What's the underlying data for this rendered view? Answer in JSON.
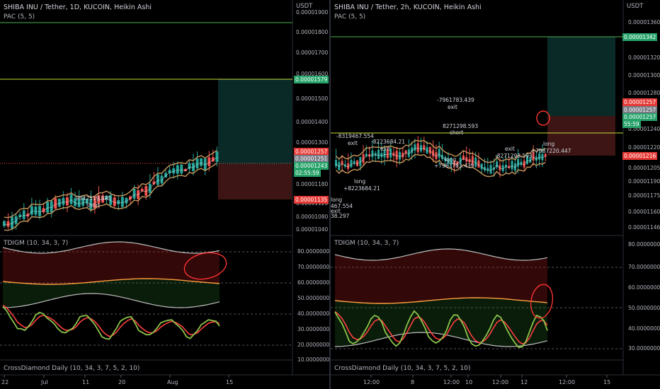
{
  "left": {
    "title": "SHIBA INU / Tether, 1D, KUCOIN, Heikin Ashi",
    "pac": "PAC (5, 5)",
    "indicator": "TDIGM (10, 34, 3, 7)",
    "crossdiamond": "CrossDiamond Daily (10, 34, 3, 7, 5, 2, 10)",
    "currency": "USDT",
    "price_ticks": [
      "0.00001900",
      "0.00001800",
      "0.00001700",
      "0.00001600",
      "0.00001500",
      "0.00001400",
      "0.00001300",
      "0.00001180",
      "0.00001120",
      "0.00001080",
      "0.00001040"
    ],
    "tags": {
      "top_green": "0.00001579",
      "red1": "0.00001257",
      "gray": "0.00001251",
      "green": "0.00001243",
      "timer": "02:55:59",
      "red2": "0.00001135"
    },
    "osc_ticks": [
      "80.00000000",
      "70.00000000",
      "60.00000000",
      "50.00000000",
      "40.00000000",
      "30.00000000",
      "20.00000000",
      "10.00000000"
    ],
    "x_labels": [
      "22",
      "Jul",
      "11",
      "20",
      "Aug",
      "15"
    ],
    "annotations": [
      "9842519.685",
      "short"
    ]
  },
  "right": {
    "title": "SHIBA INU / Tether, 2h, KUCOIN, Heikin Ashi",
    "pac": "PAC (5, 5)",
    "indicator": "TDIGM (10, 34, 3, 7)",
    "crossdiamond": "CrossDiamond Daily (10, 34, 3, 7, 5, 2, 10)",
    "currency": "USDT",
    "price_ticks": [
      "0.00001360",
      "0.00001320",
      "0.00001300",
      "0.00001280",
      "0.00001240",
      "0.00001220",
      "0.00001205",
      "0.00001190",
      "0.00001175",
      "0.00001160",
      "0.00001146"
    ],
    "tags": {
      "top_green": "0.00001342",
      "red1": "0.00001257",
      "gray": "0.00001257",
      "green": "0.00001257",
      "timer": "55:59",
      "red2": "0.00001216"
    },
    "osc_ticks": [
      "80.00000000",
      "70.00000000",
      "60.00000000",
      "50.00000000",
      "40.00000000",
      "30.00000000"
    ],
    "x_labels": [
      "12:00",
      "8",
      "12:00",
      "10",
      "12:00",
      "12",
      "12:00",
      "15"
    ],
    "annotations": [
      "-8319467.554",
      "exit",
      "-8223684.21",
      "exit",
      "long",
      "+8223684.21",
      "long",
      "467.554",
      "exit",
      "38.297",
      "-7961783.439",
      "exit",
      "8271298.593",
      "short",
      "long",
      "+7961783.439",
      "exit",
      "-8271298.593",
      "long",
      "+7987220.447"
    ]
  },
  "colors": {
    "up": "#26a69a",
    "down": "#ef5350",
    "pac_line": "#c8975a",
    "band": "#c0c0c0",
    "rsi": "#8bc34a",
    "signal": "#ff4040",
    "mid": "#ffa040",
    "green_tag": "#26a269",
    "red_tag": "#e53935",
    "green_line": "#4caf50",
    "yellow_line": "#cddc39",
    "ellipse": "#ff3333"
  }
}
